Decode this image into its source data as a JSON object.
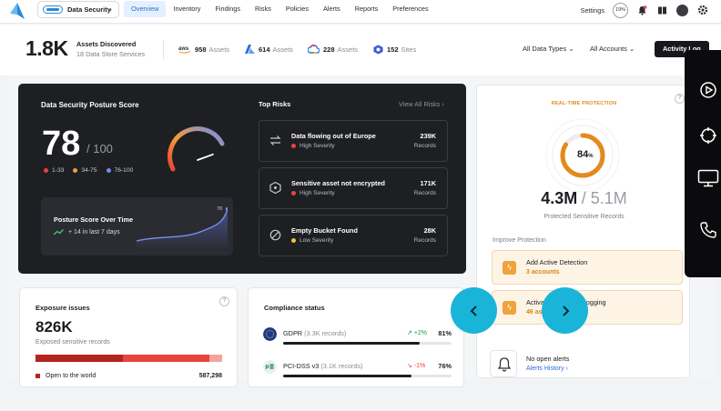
{
  "nav": {
    "product": "Data Security",
    "tabs": [
      {
        "label": "Overview",
        "active": true
      },
      {
        "label": "Inventory"
      },
      {
        "label": "Findings"
      },
      {
        "label": "Risks"
      },
      {
        "label": "Policies"
      },
      {
        "label": "Alerts"
      },
      {
        "label": "Reports"
      },
      {
        "label": "Preferences"
      }
    ],
    "settings": "Settings",
    "badge_pct": "19%"
  },
  "summary": {
    "total": "1.8K",
    "title": "Assets Discovered",
    "subtitle": "18 Data Store Services",
    "providers": [
      {
        "icon": "aws-icon",
        "logo": "aws",
        "count": "958",
        "unit": "Assets"
      },
      {
        "icon": "azure-icon",
        "count": "614",
        "unit": "Assets"
      },
      {
        "icon": "gcp-icon",
        "count": "228",
        "unit": "Assets"
      },
      {
        "icon": "sites-icon",
        "count": "152",
        "unit": "Sites"
      }
    ],
    "filter_types": "All Data Types",
    "filter_accounts": "All Accounts",
    "activity_button": "Activity Log"
  },
  "posture": {
    "title": "Data Security Posture Score",
    "score": "78",
    "max": "/ 100",
    "gauge_score": 78,
    "legend": [
      {
        "label": "1-33",
        "color": "#e8453c"
      },
      {
        "label": "34-75",
        "color": "#f29b3a"
      },
      {
        "label": "76-100",
        "color": "#6f8df2"
      }
    ],
    "trend_title": "Posture Score Over Time",
    "trend_delta": "+ 14 in last 7 days",
    "trend_peak": "78"
  },
  "risks": {
    "title": "Top Risks",
    "view_all": "View All Risks",
    "items": [
      {
        "title": "Data flowing out of Europe",
        "severity": "High Severity",
        "sev_color": "#e8453c",
        "count": "239K",
        "unit": "Records",
        "icon": "transfer-icon"
      },
      {
        "title": "Sensitive asset not encrypted",
        "severity": "High Severity",
        "sev_color": "#e8453c",
        "count": "171K",
        "unit": "Records",
        "icon": "shield-icon"
      },
      {
        "title": "Empty Bucket Found",
        "severity": "Low Severity",
        "sev_color": "#f2c53a",
        "count": "28K",
        "unit": "Records",
        "icon": "empty-icon"
      }
    ]
  },
  "protection": {
    "label": "REAL-TIME PROTECTION",
    "percent": "84",
    "percent_sign": "%",
    "percent_value": 84,
    "protected": "4.3M",
    "total": "/ 5.1M",
    "subtitle": "Protected Sensitive Records",
    "improve_title": "Improve Protection",
    "suggestions": [
      {
        "title": "Add Active Detection",
        "sub": "3 accounts"
      },
      {
        "title": "Activate Extensive Logging",
        "sub": "46 assets"
      }
    ],
    "alerts_title": "No open alerts",
    "alerts_link": "Alerts History"
  },
  "exposure": {
    "title": "Exposure issues",
    "value": "826K",
    "subtitle": "Exposed sensitive records",
    "row_label": "Open to the world",
    "row_value": "587,298"
  },
  "compliance": {
    "title": "Compliance status",
    "items": [
      {
        "name": "GDPR",
        "records": "(3.3K records)",
        "delta": "+2%",
        "delta_color": "#1f9d55",
        "pct": "81%",
        "pct_value": 81,
        "icon": "eu-flag-icon"
      },
      {
        "name": "PCI-DSS v3",
        "records": "(3.1K records)",
        "delta": "-1%",
        "delta_color": "#e8453c",
        "pct": "76%",
        "pct_value": 76,
        "icon": "pci-icon"
      }
    ]
  },
  "colors": {
    "accent": "#2b6fd6",
    "orange": "#f29b3a",
    "overlay_button": "#1ab4d9",
    "dark_card": "#1e1f23"
  }
}
